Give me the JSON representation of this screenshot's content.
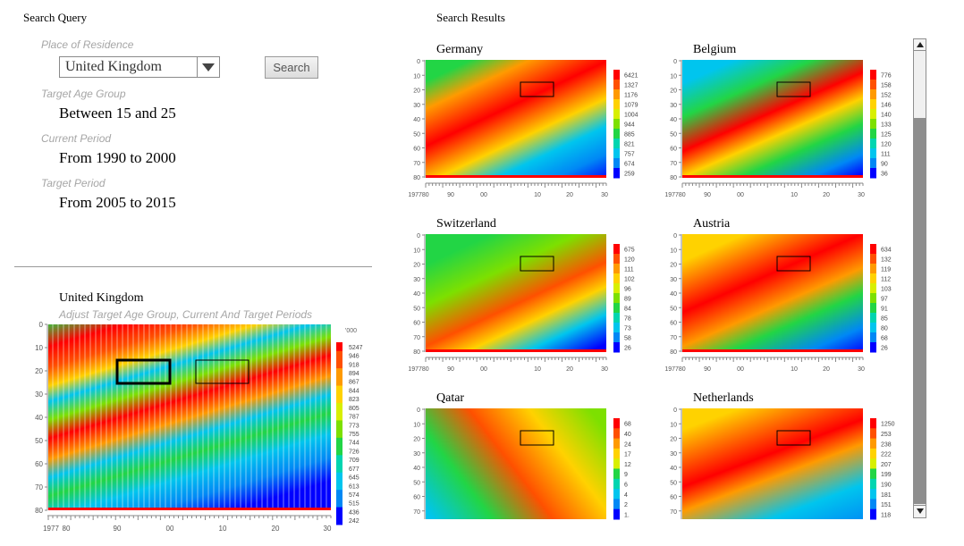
{
  "query": {
    "header": "Search Query",
    "residence_label": "Place of Residence",
    "residence_value": "United Kingdom",
    "search_label": "Search",
    "age_label": "Target Age Group",
    "age_value": "Between 15 and 25",
    "current_label": "Current Period",
    "current_value": "From 1990 to 2000",
    "target_label": "Target Period",
    "target_value": "From 2005 to 2015"
  },
  "main": {
    "title": "United Kingdom",
    "subtitle": "Adjust Target Age Group, Current And Target Periods",
    "unit": "'000",
    "x_ticks": [
      "1977",
      "80",
      "90",
      "00",
      "10",
      "20",
      "30"
    ],
    "y_ticks": [
      "0",
      "10",
      "20",
      "30",
      "40",
      "50",
      "60",
      "70",
      "80"
    ],
    "legend": [
      "5247",
      "946",
      "918",
      "894",
      "867",
      "844",
      "823",
      "805",
      "787",
      "773",
      "755",
      "744",
      "726",
      "709",
      "677",
      "645",
      "613",
      "574",
      "515",
      "436",
      "242"
    ]
  },
  "results": {
    "header": "Search Results",
    "y_ticks": [
      "0",
      "10",
      "20",
      "30",
      "40",
      "50",
      "60",
      "70",
      "80"
    ],
    "x_ticks": [
      "197780",
      "90",
      "00",
      "10",
      "20",
      "30"
    ],
    "countries": [
      {
        "name": "Germany",
        "legend": [
          "6421",
          "1327",
          "1176",
          "1079",
          "1004",
          "944",
          "885",
          "821",
          "757",
          "674",
          "259"
        ]
      },
      {
        "name": "Belgium",
        "legend": [
          "776",
          "158",
          "152",
          "146",
          "140",
          "133",
          "125",
          "120",
          "111",
          "90",
          "36"
        ]
      },
      {
        "name": "Switzerland",
        "legend": [
          "675",
          "120",
          "111",
          "102",
          "96",
          "89",
          "84",
          "78",
          "73",
          "58",
          "26"
        ]
      },
      {
        "name": "Austria",
        "legend": [
          "634",
          "132",
          "119",
          "112",
          "103",
          "97",
          "91",
          "85",
          "80",
          "68",
          "26"
        ]
      },
      {
        "name": "Qatar",
        "legend": [
          "68",
          "40",
          "24",
          "17",
          "12",
          "9",
          "6",
          "4",
          "2",
          "1."
        ]
      },
      {
        "name": "Netherlands",
        "legend": [
          "1250",
          "253",
          "238",
          "222",
          "207",
          "199",
          "190",
          "181",
          "151",
          "118"
        ]
      }
    ]
  },
  "colors": {
    "scale": [
      "#ff0000",
      "#ff5000",
      "#ff9a00",
      "#ffd200",
      "#d8ef00",
      "#7de000",
      "#22d545",
      "#00d5b0",
      "#00c5ee",
      "#0088f5",
      "#0000ff"
    ]
  }
}
